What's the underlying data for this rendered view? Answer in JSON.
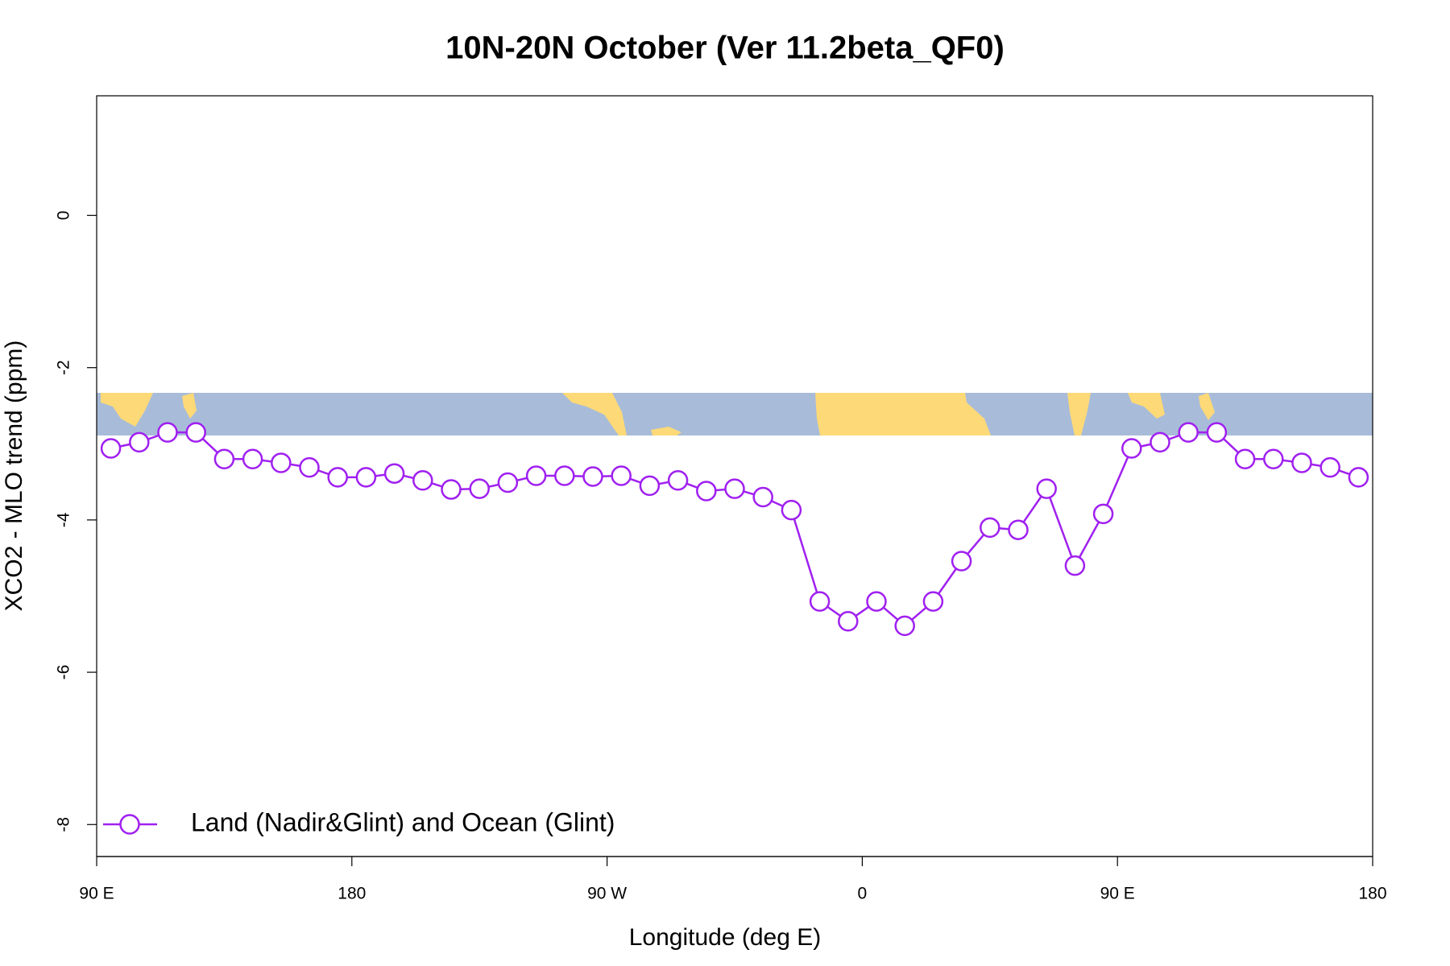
{
  "chart_data": {
    "type": "line",
    "title": "10N-20N October (Ver 11.2beta_QF0)",
    "xlabel": "Longitude (deg E)",
    "ylabel": "XCO2 - MLO trend (ppm)",
    "xlim": [
      90,
      540
    ],
    "ylim": [
      -8.42,
      1.57
    ],
    "xticks": [
      {
        "value": 90,
        "label": "90 E"
      },
      180,
      {
        "value": 270,
        "label": "90 W"
      },
      {
        "value": 360,
        "label": "0"
      },
      {
        "value": 450,
        "label": "90 E"
      },
      {
        "value": 540,
        "label": "180"
      }
    ],
    "yticks": [
      -8,
      -6,
      -4,
      -2,
      0
    ],
    "legend": "bottom-left",
    "x": [
      95,
      105,
      115,
      125,
      135,
      145,
      155,
      165,
      175,
      185,
      195,
      205,
      215,
      225,
      235,
      245,
      255,
      265,
      275,
      285,
      295,
      305,
      315,
      325,
      335,
      345,
      355,
      365,
      375,
      385,
      395,
      405,
      415,
      425,
      435,
      445,
      455,
      465,
      475,
      485,
      495,
      505,
      515,
      525,
      535
    ],
    "series": [
      {
        "name": "Land (Nadir&Glint) and Ocean (Glint)",
        "color": "#a020f0",
        "values": [
          -3.06,
          -2.98,
          -2.85,
          -2.85,
          -3.2,
          -3.2,
          -3.25,
          -3.31,
          -3.44,
          -3.44,
          -3.39,
          -3.48,
          -3.6,
          -3.59,
          -3.51,
          -3.42,
          -3.42,
          -3.43,
          -3.42,
          -3.55,
          -3.48,
          -3.62,
          -3.59,
          -3.7,
          -3.87,
          -5.07,
          -5.33,
          -5.07,
          -5.39,
          -5.07,
          -4.54,
          -4.1,
          -4.13,
          -3.59,
          -4.6,
          -3.92,
          -3.06,
          -2.98,
          -2.85,
          -2.85,
          -3.2,
          -3.2,
          -3.25,
          -3.31,
          -3.44
        ]
      }
    ]
  }
}
